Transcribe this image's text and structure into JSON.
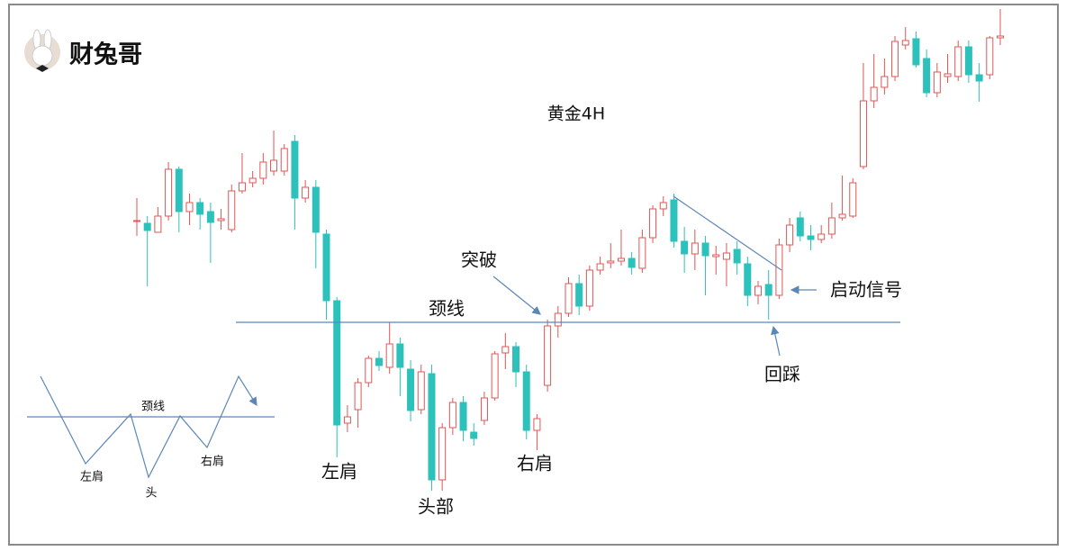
{
  "logo": "财兔哥",
  "chart_data": {
    "type": "candlestick",
    "title": "黄金4H",
    "annotations": [
      "突破",
      "颈线",
      "左肩",
      "头部",
      "右肩",
      "回踩",
      "启动信号"
    ],
    "diagram_labels": [
      "颈线",
      "左肩",
      "头",
      "右肩"
    ],
    "up_color": "#e05555",
    "down_color": "#2cc1bb",
    "ylim": [
      0,
      600
    ],
    "open": [
      354,
      352,
      342,
      360,
      412,
      365,
      375,
      365,
      355,
      345,
      388,
      397,
      402,
      410,
      410,
      443,
      380,
      392,
      340,
      266,
      130,
      145,
      175,
      202,
      192,
      218,
      190,
      145,
      185,
      67,
      125,
      153,
      120,
      133,
      158,
      208,
      215,
      187,
      122,
      172,
      238,
      252,
      285,
      260,
      300,
      308,
      310,
      313,
      302,
      336,
      368,
      378,
      332,
      318,
      330,
      315,
      312,
      323,
      307,
      272,
      284,
      272,
      328,
      358,
      338,
      334,
      340,
      358,
      360,
      415,
      488,
      503,
      515,
      550,
      557,
      535,
      497,
      515,
      515,
      548,
      517,
      517,
      558
    ],
    "high": [
      380,
      360,
      370,
      420,
      415,
      385,
      380,
      375,
      368,
      395,
      430,
      410,
      430,
      455,
      440,
      450,
      400,
      400,
      345,
      270,
      150,
      180,
      205,
      210,
      242,
      225,
      200,
      195,
      195,
      130,
      158,
      160,
      130,
      165,
      210,
      230,
      220,
      195,
      140,
      245,
      260,
      292,
      295,
      305,
      315,
      330,
      345,
      320,
      345,
      372,
      382,
      385,
      348,
      345,
      338,
      327,
      330,
      332,
      315,
      288,
      300,
      335,
      358,
      365,
      350,
      350,
      375,
      405,
      402,
      530,
      540,
      535,
      560,
      570,
      565,
      545,
      530,
      540,
      555,
      555,
      530,
      560,
      590
    ],
    "low": [
      338,
      282,
      342,
      355,
      342,
      350,
      345,
      308,
      345,
      342,
      385,
      392,
      395,
      405,
      405,
      345,
      375,
      302,
      245,
      92,
      120,
      125,
      170,
      188,
      185,
      160,
      132,
      140,
      55,
      55,
      117,
      110,
      105,
      128,
      155,
      190,
      170,
      112,
      100,
      165,
      225,
      248,
      250,
      255,
      295,
      302,
      305,
      295,
      297,
      330,
      360,
      325,
      297,
      300,
      272,
      295,
      282,
      295,
      260,
      262,
      245,
      268,
      320,
      332,
      322,
      330,
      335,
      355,
      358,
      412,
      480,
      495,
      510,
      545,
      525,
      492,
      492,
      508,
      510,
      508,
      487,
      512,
      550
    ],
    "close": [
      355,
      344,
      360,
      412,
      365,
      375,
      362,
      353,
      357,
      388,
      397,
      402,
      420,
      422,
      435,
      380,
      392,
      342,
      266,
      128,
      137,
      175,
      202,
      194,
      218,
      192,
      144,
      187,
      67,
      125,
      153,
      122,
      113,
      158,
      207,
      215,
      187,
      122,
      135,
      238,
      252,
      285,
      260,
      300,
      307,
      310,
      313,
      303,
      336,
      368,
      375,
      332,
      318,
      330,
      316,
      317,
      319,
      308,
      272,
      282,
      272,
      328,
      350,
      338,
      334,
      340,
      358,
      362,
      397,
      488,
      503,
      515,
      554,
      555,
      528,
      497,
      520,
      518,
      548,
      517,
      510,
      558,
      560
    ]
  }
}
